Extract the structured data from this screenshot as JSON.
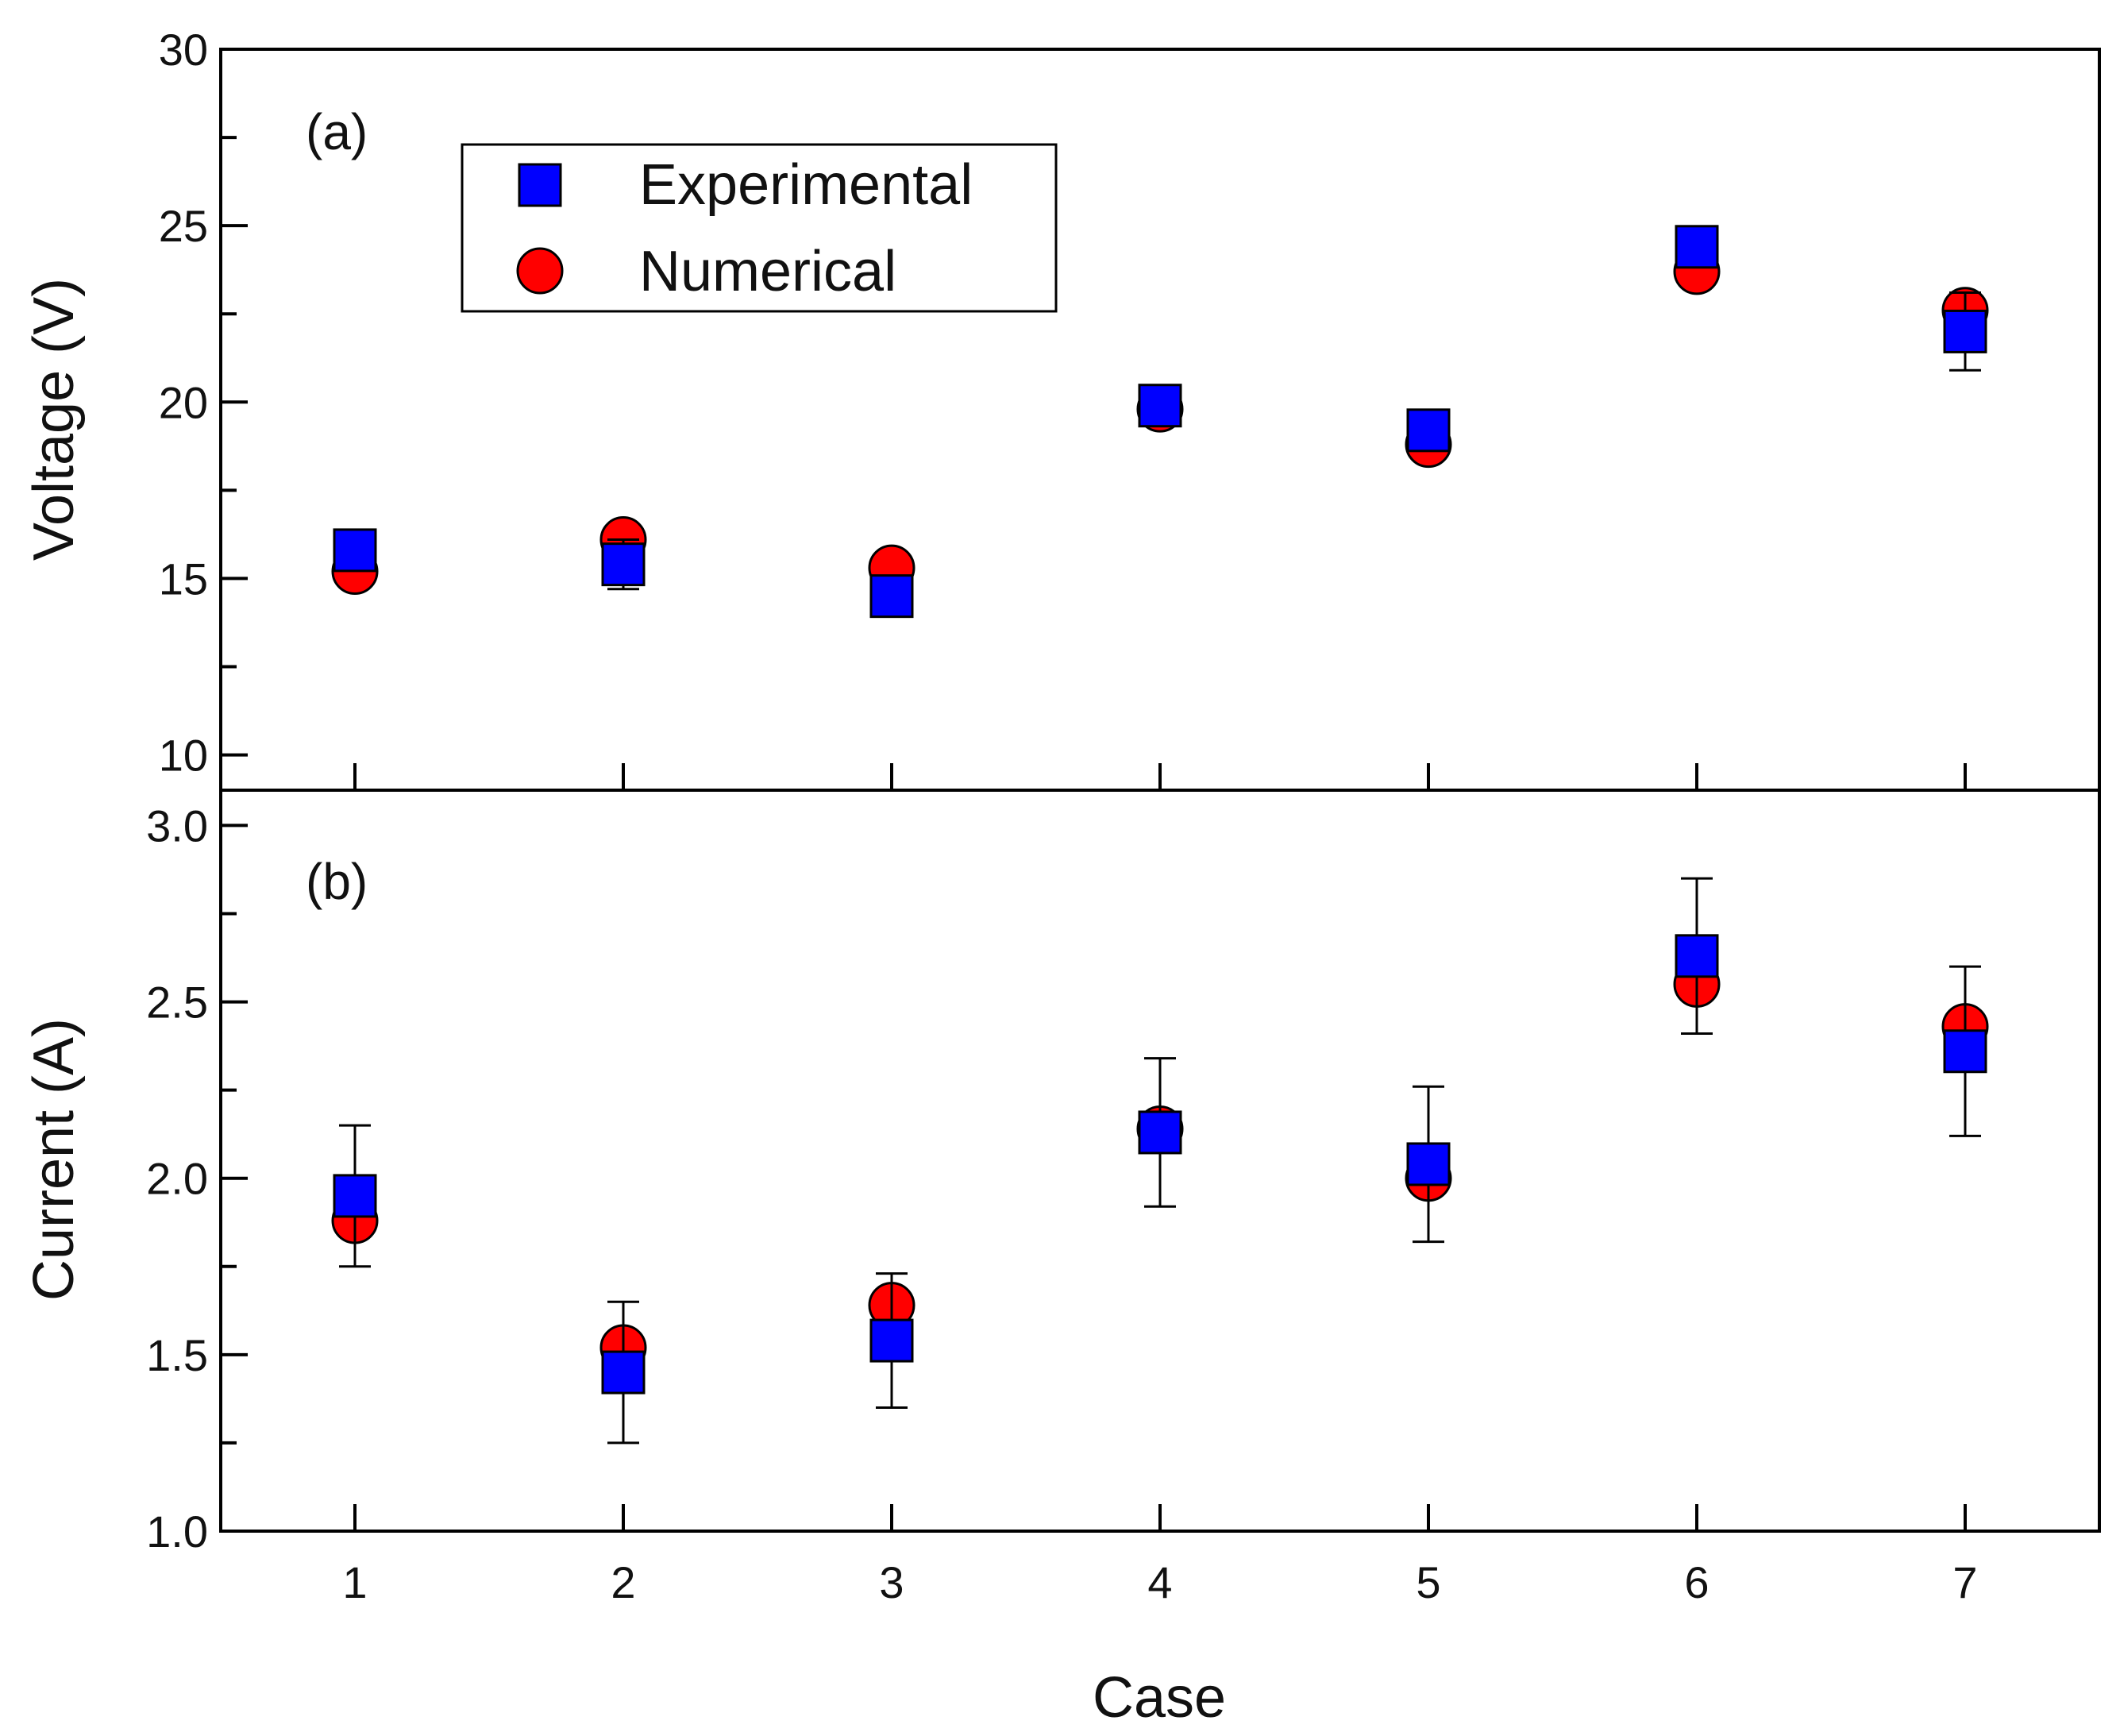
{
  "colors": {
    "experimental": "#0000ff",
    "numerical": "#ff0000",
    "axis": "#000000",
    "error_bar": "#000000"
  },
  "chart_data": [
    {
      "type": "scatter",
      "panel_label": "(a)",
      "xlabel": "",
      "ylabel": "Voltage (V)",
      "xlim": [
        0.5,
        7.5
      ],
      "ylim": [
        9,
        30
      ],
      "yticks_major": [
        10,
        15,
        20,
        25,
        30
      ],
      "ytick_labels": [
        "10",
        "15",
        "20",
        "25",
        "30"
      ],
      "yticks_minor": [
        12.5,
        17.5,
        22.5,
        27.5
      ],
      "x": [
        1,
        2,
        3,
        4,
        5,
        6,
        7
      ],
      "legend": {
        "placement": "top-left",
        "entries": [
          {
            "name": "Experimental",
            "marker": "square-icon"
          },
          {
            "name": "Numerical",
            "marker": "circle-icon"
          }
        ]
      },
      "series": [
        {
          "name": "Experimental",
          "marker": "square",
          "values": [
            15.8,
            15.4,
            14.5,
            19.9,
            19.2,
            24.4,
            22.0
          ],
          "error": [
            0.4,
            0.7,
            0.3,
            0.3,
            0.4,
            0.5,
            1.1
          ]
        },
        {
          "name": "Numerical",
          "marker": "circle",
          "values": [
            15.2,
            16.1,
            15.3,
            19.8,
            18.8,
            23.7,
            22.6
          ]
        }
      ]
    },
    {
      "type": "scatter",
      "panel_label": "(b)",
      "xlabel": "Case",
      "ylabel": "Current (A)",
      "xlim": [
        0.5,
        7.5
      ],
      "ylim": [
        1.0,
        3.1
      ],
      "xticks": [
        1,
        2,
        3,
        4,
        5,
        6,
        7
      ],
      "xtick_labels": [
        "1",
        "2",
        "3",
        "4",
        "5",
        "6",
        "7"
      ],
      "yticks_major": [
        1.0,
        1.5,
        2.0,
        2.5,
        3.0
      ],
      "ytick_labels": [
        "1.0",
        "1.5",
        "2.0",
        "2.5",
        "3.0"
      ],
      "yticks_minor": [
        1.25,
        1.75,
        2.25,
        2.75
      ],
      "x": [
        1,
        2,
        3,
        4,
        5,
        6,
        7
      ],
      "series": [
        {
          "name": "Experimental",
          "marker": "square",
          "values": [
            1.95,
            1.45,
            1.54,
            2.13,
            2.04,
            2.63,
            2.36
          ],
          "error": [
            0.2,
            0.2,
            0.19,
            0.21,
            0.22,
            0.22,
            0.24
          ]
        },
        {
          "name": "Numerical",
          "marker": "circle",
          "values": [
            1.88,
            1.52,
            1.64,
            2.14,
            2.0,
            2.55,
            2.43
          ]
        }
      ]
    }
  ]
}
